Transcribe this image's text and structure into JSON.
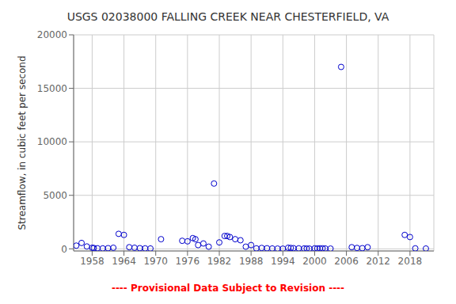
{
  "chart_data": {
    "type": "scatter",
    "title": "USGS 02038000 FALLING CREEK NEAR CHESTERFIELD, VA",
    "y_label": "Streamflow, in cubic feet per second",
    "annotations": [
      {
        "text": "---- Provisional Data Subject to Revision ----",
        "color": "red"
      }
    ],
    "x": [
      1955,
      1956,
      1957,
      1958,
      1958.3,
      1959,
      1960,
      1961,
      1962,
      1963,
      1964,
      1965,
      1966,
      1967,
      1968,
      1969,
      1971,
      1975,
      1976,
      1977,
      1977.5,
      1978,
      1979,
      1980,
      1981,
      1982,
      1983,
      1983.5,
      1984,
      1985,
      1986,
      1987,
      1988,
      1989,
      1990,
      1991,
      1992,
      1993,
      1994,
      1995,
      1995.5,
      1996,
      1997,
      1998,
      1998.5,
      1999,
      2000,
      2000.5,
      2001,
      2001.5,
      2002,
      2003,
      2005,
      2007,
      2008,
      2009,
      2010,
      2017,
      2018,
      2019,
      2021
    ],
    "values": [
      300,
      550,
      220,
      100,
      80,
      50,
      40,
      60,
      100,
      1400,
      1300,
      150,
      100,
      60,
      40,
      30,
      900,
      750,
      700,
      1000,
      900,
      350,
      500,
      200,
      6100,
      600,
      1200,
      1200,
      1100,
      900,
      800,
      200,
      350,
      40,
      80,
      50,
      30,
      20,
      15,
      100,
      80,
      60,
      40,
      30,
      25,
      20,
      40,
      35,
      45,
      40,
      30,
      20,
      17000,
      150,
      80,
      60,
      150,
      1300,
      1100,
      40,
      25
    ],
    "color": "#0000cc",
    "marker": "circle",
    "xlim": [
      1954.5,
      2022.5
    ],
    "xticks": [
      1958,
      1964,
      1970,
      1976,
      1982,
      1988,
      1994,
      2000,
      2006,
      2012,
      2018
    ],
    "ylim": [
      -200,
      20000
    ],
    "yticks": [
      0,
      5000,
      10000,
      15000,
      20000
    ],
    "grid": true
  }
}
